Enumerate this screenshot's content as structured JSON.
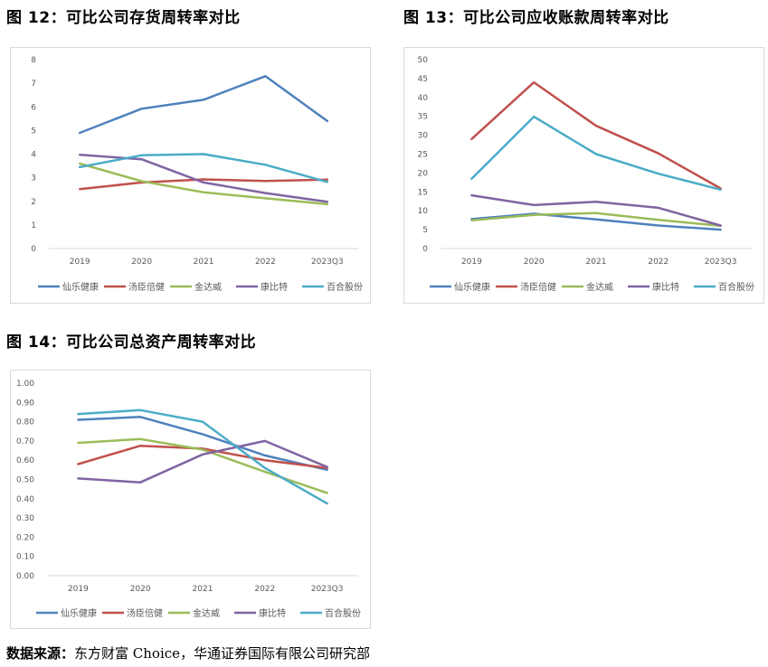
{
  "figures": {
    "fig12": {
      "title": "图 12：可比公司存货周转率对比"
    },
    "fig13": {
      "title": "图 13：可比公司应收账款周转率对比"
    },
    "fig14": {
      "title": "图 14：可比公司总资产周转率对比"
    }
  },
  "source": {
    "label": "数据来源：",
    "text": "东方财富 Choice，华通证券国际有限公司研究部"
  },
  "chart_data": [
    {
      "id": "fig12",
      "type": "line",
      "title": "图 12：可比公司存货周转率对比",
      "categories": [
        "2019",
        "2020",
        "2021",
        "2022",
        "2023Q3"
      ],
      "ylim": [
        0,
        8
      ],
      "yticks": [
        "0",
        "1",
        "2",
        "3",
        "4",
        "5",
        "6",
        "7",
        "8"
      ],
      "ytick_values": [
        0,
        1,
        2,
        3,
        4,
        5,
        6,
        7,
        8
      ],
      "grid": false,
      "legend": "bottom",
      "series": [
        {
          "name": "仙乐健康",
          "color": "#4f81bd",
          "values": [
            4.9,
            5.92,
            6.3,
            7.3,
            5.4
          ]
        },
        {
          "name": "汤臣倍健",
          "color": "#c0504d",
          "values": [
            2.52,
            2.8,
            2.93,
            2.86,
            2.92
          ]
        },
        {
          "name": "金达威",
          "color": "#9bbb59",
          "values": [
            3.6,
            2.85,
            2.38,
            2.13,
            1.88
          ]
        },
        {
          "name": "康比特",
          "color": "#8064a2",
          "values": [
            3.97,
            3.78,
            2.8,
            2.35,
            1.98
          ]
        },
        {
          "name": "百合股份",
          "color": "#4bacc6",
          "values": [
            3.45,
            3.95,
            4.0,
            3.55,
            2.82
          ]
        }
      ]
    },
    {
      "id": "fig13",
      "type": "line",
      "title": "图 13：可比公司应收账款周转率对比",
      "categories": [
        "2019",
        "2020",
        "2021",
        "2022",
        "2023Q3"
      ],
      "ylim": [
        0,
        50
      ],
      "yticks": [
        "0",
        "5",
        "10",
        "15",
        "20",
        "25",
        "30",
        "35",
        "40",
        "45",
        "50"
      ],
      "ytick_values": [
        0,
        5,
        10,
        15,
        20,
        25,
        30,
        35,
        40,
        45,
        50
      ],
      "grid": false,
      "legend": "bottom",
      "series": [
        {
          "name": "仙乐健康",
          "color": "#4f81bd",
          "values": [
            7.8,
            9.2,
            7.7,
            6.1,
            5.0
          ]
        },
        {
          "name": "汤臣倍健",
          "color": "#c0504d",
          "values": [
            29.0,
            44.0,
            32.5,
            25.2,
            15.9
          ]
        },
        {
          "name": "金达威",
          "color": "#9bbb59",
          "values": [
            7.5,
            8.9,
            9.4,
            7.6,
            6.0
          ]
        },
        {
          "name": "康比特",
          "color": "#8064a2",
          "values": [
            14.1,
            11.5,
            12.4,
            10.8,
            6.1
          ]
        },
        {
          "name": "百合股份",
          "color": "#4bacc6",
          "values": [
            18.5,
            34.9,
            25.0,
            19.8,
            15.6
          ]
        }
      ]
    },
    {
      "id": "fig14",
      "type": "line",
      "title": "图 14：可比公司总资产周转率对比",
      "categories": [
        "2019",
        "2020",
        "2021",
        "2022",
        "2023Q3"
      ],
      "ylim": [
        0,
        1.0
      ],
      "yticks": [
        "0.00",
        "0.10",
        "0.20",
        "0.30",
        "0.40",
        "0.50",
        "0.60",
        "0.70",
        "0.80",
        "0.90",
        "1.00"
      ],
      "ytick_values": [
        0,
        0.1,
        0.2,
        0.3,
        0.4,
        0.5,
        0.6,
        0.7,
        0.8,
        0.9,
        1.0
      ],
      "grid": false,
      "legend": "bottom",
      "series": [
        {
          "name": "仙乐健康",
          "color": "#4f81bd",
          "values": [
            0.81,
            0.825,
            0.735,
            0.625,
            0.55
          ]
        },
        {
          "name": "汤臣倍健",
          "color": "#c0504d",
          "values": [
            0.58,
            0.675,
            0.66,
            0.6,
            0.56
          ]
        },
        {
          "name": "金达威",
          "color": "#9bbb59",
          "values": [
            0.69,
            0.71,
            0.655,
            0.54,
            0.43
          ]
        },
        {
          "name": "康比特",
          "color": "#8064a2",
          "values": [
            0.505,
            0.485,
            0.63,
            0.7,
            0.565
          ]
        },
        {
          "name": "百合股份",
          "color": "#4bacc6",
          "values": [
            0.84,
            0.86,
            0.8,
            0.56,
            0.375
          ]
        }
      ]
    }
  ]
}
